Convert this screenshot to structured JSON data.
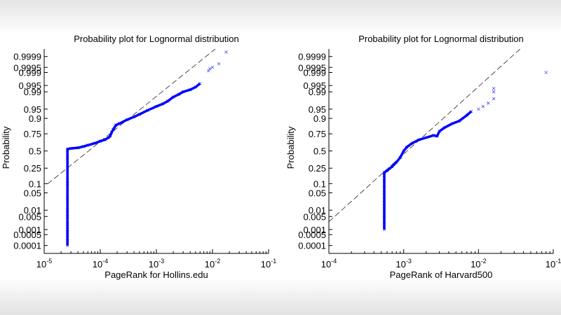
{
  "chart_data": [
    {
      "type": "scatter",
      "title": "Probability plot for Lognormal distribution",
      "xlabel": "PageRank for Hollins.edu",
      "ylabel": "Probability",
      "xscale": "log",
      "yscale": "normal-probability",
      "xlim": [
        1e-05,
        0.1
      ],
      "x_ticks": [
        {
          "base": "10",
          "exp": "-5",
          "value": 1e-05
        },
        {
          "base": "10",
          "exp": "-4",
          "value": 0.0001
        },
        {
          "base": "10",
          "exp": "-3",
          "value": 0.001
        },
        {
          "base": "10",
          "exp": "-2",
          "value": 0.01
        },
        {
          "base": "10",
          "exp": "-1",
          "value": 0.1
        }
      ],
      "y_ticks": [
        "0.0001",
        "0.0005",
        "0.001",
        "0.005",
        "0.01",
        "0.05",
        "0.1",
        "0.25",
        "0.5",
        "0.75",
        "0.9",
        "0.95",
        "0.99",
        "0.995",
        "0.999",
        "0.9995",
        "0.9999"
      ],
      "marker": "x",
      "marker_color": "#0000ff",
      "reference_line": [
        [
          1.15e-05,
          0.098
        ],
        [
          0.0112,
          0.99997
        ]
      ],
      "points": [
        [
          2.6e-05,
          0.0001
        ],
        [
          2.6e-05,
          0.0002
        ],
        [
          2.6e-05,
          0.0003
        ],
        [
          2.6e-05,
          0.0005
        ],
        [
          2.6e-05,
          0.0007
        ],
        [
          2.6e-05,
          0.001
        ],
        [
          2.6e-05,
          0.002
        ],
        [
          2.6e-05,
          0.005
        ],
        [
          2.6e-05,
          0.01
        ],
        [
          2.6e-05,
          0.03
        ],
        [
          2.6e-05,
          0.1
        ],
        [
          2.6e-05,
          0.25
        ],
        [
          2.6e-05,
          0.4
        ],
        [
          2.6e-05,
          0.53
        ],
        [
          3e-05,
          0.54
        ],
        [
          4e-05,
          0.55
        ],
        [
          5e-05,
          0.57
        ],
        [
          6e-05,
          0.59
        ],
        [
          8e-05,
          0.62
        ],
        [
          0.0001,
          0.65
        ],
        [
          0.00012,
          0.67
        ],
        [
          0.00014,
          0.7
        ],
        [
          0.00015,
          0.72
        ],
        [
          0.00016,
          0.77
        ],
        [
          0.00017,
          0.8
        ],
        [
          0.00019,
          0.845
        ],
        [
          0.00022,
          0.86
        ],
        [
          0.0003,
          0.89
        ],
        [
          0.0004,
          0.91
        ],
        [
          0.0005,
          0.925
        ],
        [
          0.0007,
          0.945
        ],
        [
          0.001,
          0.96
        ],
        [
          0.0013,
          0.968
        ],
        [
          0.0016,
          0.975
        ],
        [
          0.002,
          0.983
        ],
        [
          0.0025,
          0.987
        ],
        [
          0.003,
          0.99
        ],
        [
          0.004,
          0.992
        ],
        [
          0.005,
          0.994
        ],
        [
          0.006,
          0.996
        ]
      ],
      "outliers": [
        [
          0.0085,
          0.9992
        ],
        [
          0.009,
          0.9994
        ],
        [
          0.01,
          0.9995
        ],
        [
          0.013,
          0.9997
        ],
        [
          0.0175,
          0.99995
        ]
      ]
    },
    {
      "type": "scatter",
      "title": "Probability plot for Lognormal distribution",
      "xlabel": "PageRank of Harvard500",
      "ylabel": "Probability",
      "xscale": "log",
      "yscale": "normal-probability",
      "xlim": [
        0.0001,
        0.1
      ],
      "x_ticks": [
        {
          "base": "10",
          "exp": "-4",
          "value": 0.0001
        },
        {
          "base": "10",
          "exp": "-3",
          "value": 0.001
        },
        {
          "base": "10",
          "exp": "-2",
          "value": 0.01
        },
        {
          "base": "10",
          "exp": "-1",
          "value": 0.1
        }
      ],
      "y_ticks": [
        "0.0001",
        "0.0005",
        "0.001",
        "0.005",
        "0.01",
        "0.05",
        "0.1",
        "0.25",
        "0.5",
        "0.75",
        "0.9",
        "0.95",
        "0.99",
        "0.995",
        "0.999",
        "0.9995",
        "0.9999"
      ],
      "marker": "x",
      "marker_color": "#0000ff",
      "reference_line": [
        [
          0.0001,
          0.0027
        ],
        [
          0.036,
          0.99997
        ]
      ],
      "points": [
        [
          0.00055,
          0.001
        ],
        [
          0.00055,
          0.002
        ],
        [
          0.00055,
          0.004
        ],
        [
          0.00055,
          0.006
        ],
        [
          0.00055,
          0.01
        ],
        [
          0.00055,
          0.015
        ],
        [
          0.00055,
          0.02
        ],
        [
          0.00055,
          0.03
        ],
        [
          0.00055,
          0.05
        ],
        [
          0.00055,
          0.08
        ],
        [
          0.00055,
          0.12
        ],
        [
          0.00055,
          0.17
        ],
        [
          0.00055,
          0.2
        ],
        [
          0.0006,
          0.22
        ],
        [
          0.0007,
          0.27
        ],
        [
          0.0008,
          0.33
        ],
        [
          0.0009,
          0.4
        ],
        [
          0.001,
          0.5
        ],
        [
          0.0011,
          0.56
        ],
        [
          0.0013,
          0.62
        ],
        [
          0.0016,
          0.67
        ],
        [
          0.002,
          0.7
        ],
        [
          0.0025,
          0.73
        ],
        [
          0.0028,
          0.72
        ],
        [
          0.003,
          0.78
        ],
        [
          0.0035,
          0.82
        ],
        [
          0.0045,
          0.86
        ],
        [
          0.0055,
          0.88
        ],
        [
          0.007,
          0.92
        ],
        [
          0.008,
          0.94
        ]
      ],
      "outliers": [
        [
          0.01,
          0.95
        ],
        [
          0.0115,
          0.96
        ],
        [
          0.0135,
          0.97
        ],
        [
          0.016,
          0.98
        ],
        [
          0.016,
          0.99
        ],
        [
          0.016,
          0.993
        ],
        [
          0.08,
          0.999
        ]
      ]
    }
  ]
}
